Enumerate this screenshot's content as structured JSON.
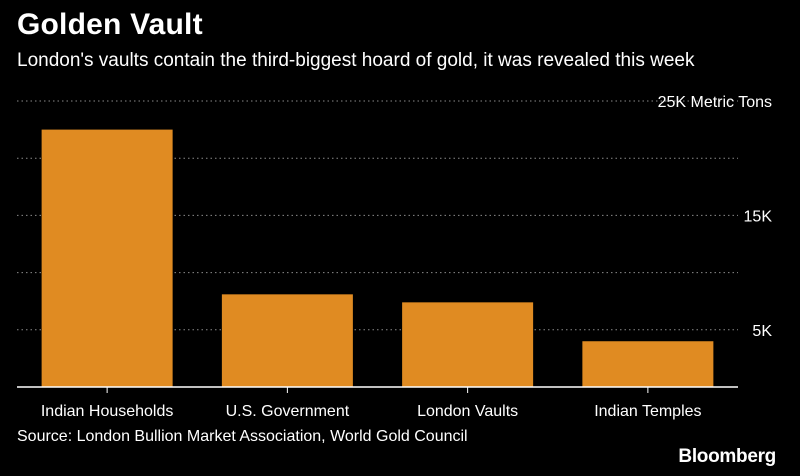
{
  "chart_data": {
    "type": "bar",
    "title": "Golden Vault",
    "subtitle": "London's vaults contain the third-biggest hoard of gold, it was revealed this week",
    "categories": [
      "Indian Households",
      "U.S. Government",
      "London Vaults",
      "Indian Temples"
    ],
    "values": [
      22500,
      8100,
      7400,
      4000
    ],
    "ylim": [
      0,
      25000
    ],
    "y_ticks": [
      {
        "value": 5000,
        "label": "5K"
      },
      {
        "value": 10000,
        "label": ""
      },
      {
        "value": 15000,
        "label": "15K"
      },
      {
        "value": 20000,
        "label": ""
      },
      {
        "value": 25000,
        "label": "25K Metric Tons"
      }
    ],
    "grid": true,
    "bar_color": "#e08b22",
    "source": "Source: London Bullion Market Association, World Gold Council",
    "brand": "Bloomberg"
  }
}
